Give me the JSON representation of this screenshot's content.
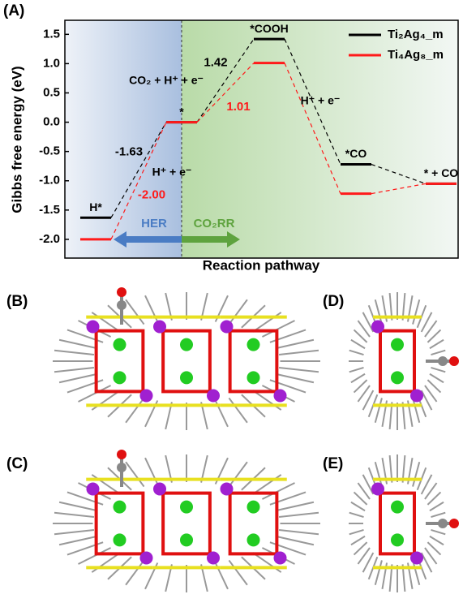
{
  "chart_data": {
    "type": "energy_levels",
    "panel_label": "(A)",
    "y_label": "Gibbs free energy (eV)",
    "x_label": "Reaction pathway",
    "categories": [
      "H*",
      "*",
      "*COOH",
      "*CO",
      "* + CO"
    ],
    "ylim": [
      -2.32,
      1.74
    ],
    "yticks": [
      {
        "value": 1.5,
        "label": "1.5"
      },
      {
        "value": 1.0,
        "label": "1.0"
      },
      {
        "value": 0.5,
        "label": "0.5"
      },
      {
        "value": 0.0,
        "label": "0.0"
      },
      {
        "value": -0.5,
        "label": "-0.5"
      },
      {
        "value": -1.0,
        "label": "-1.0"
      },
      {
        "value": -1.5,
        "label": "-1.5"
      },
      {
        "value": -2.0,
        "label": "-2.0"
      }
    ],
    "series": [
      {
        "name": "Ti₂Ag₄_m",
        "color": "#000000",
        "values": [
          -1.63,
          0,
          1.42,
          -0.72,
          -1.05
        ],
        "value_labels": [
          "-1.63",
          null,
          "1.42",
          null,
          null
        ]
      },
      {
        "name": "Ti₄Ag₈_m",
        "color": "#ff1a1a",
        "values": [
          -2.0,
          0,
          1.01,
          -1.22,
          -1.05
        ],
        "value_labels": [
          "-2.00",
          null,
          "1.01",
          null,
          null
        ]
      }
    ],
    "annotations": [
      "CO₂ + H⁺ + e⁻",
      "H⁺ + e⁻",
      "H⁺ + e⁻"
    ],
    "regions": [
      "HER",
      "CO₂RR"
    ]
  },
  "structure_panels": [
    "(B)",
    "(C)",
    "(D)",
    "(E)"
  ]
}
